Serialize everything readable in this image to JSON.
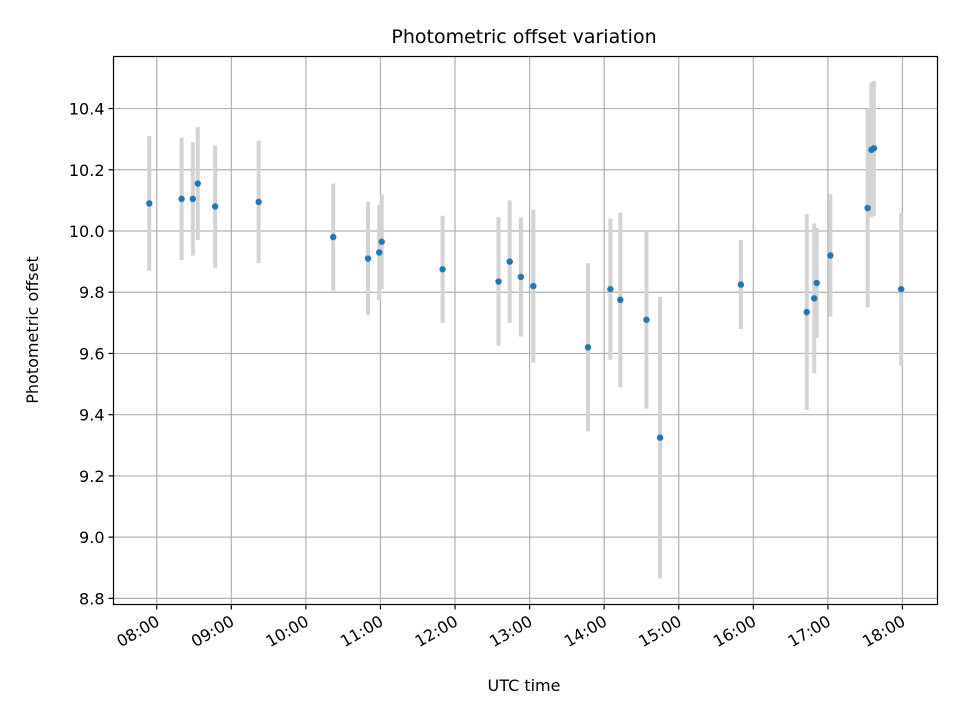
{
  "chart_data": {
    "type": "scatter",
    "title": "Photometric offset variation",
    "xlabel": "UTC time",
    "ylabel": "Photometric offset",
    "x_tick_labels": [
      "08:00",
      "09:00",
      "10:00",
      "11:00",
      "12:00",
      "13:00",
      "14:00",
      "15:00",
      "16:00",
      "17:00",
      "18:00"
    ],
    "x_ticks_hours": [
      8,
      9,
      10,
      11,
      12,
      13,
      14,
      15,
      16,
      17,
      18
    ],
    "xlim_hours": [
      7.42,
      18.47
    ],
    "y_tick_labels": [
      "8.8",
      "9.0",
      "9.2",
      "9.4",
      "9.6",
      "9.8",
      "10.0",
      "10.2",
      "10.4"
    ],
    "y_ticks": [
      8.8,
      9.0,
      9.2,
      9.4,
      9.6,
      9.8,
      10.0,
      10.2,
      10.4
    ],
    "ylim": [
      8.78,
      10.57
    ],
    "grid": true,
    "marker_color": "#1f77b4",
    "errorbar_color": "#d3d3d3",
    "series": [
      {
        "points": [
          {
            "t": "07:54",
            "y": 10.09,
            "err": 0.22
          },
          {
            "t": "08:20",
            "y": 10.105,
            "err": 0.2
          },
          {
            "t": "08:29",
            "y": 10.105,
            "err": 0.185
          },
          {
            "t": "08:33",
            "y": 10.155,
            "err": 0.185
          },
          {
            "t": "08:47",
            "y": 10.08,
            "err": 0.2
          },
          {
            "t": "09:22",
            "y": 10.095,
            "err": 0.2
          },
          {
            "t": "10:22",
            "y": 9.98,
            "err": 0.175
          },
          {
            "t": "10:50",
            "y": 9.91,
            "err": 0.185
          },
          {
            "t": "10:59",
            "y": 9.93,
            "err": 0.155
          },
          {
            "t": "11:01",
            "y": 9.965,
            "err": 0.155
          },
          {
            "t": "11:50",
            "y": 9.875,
            "err": 0.175
          },
          {
            "t": "12:35",
            "y": 9.835,
            "err": 0.21
          },
          {
            "t": "12:44",
            "y": 9.9,
            "err": 0.2
          },
          {
            "t": "12:53",
            "y": 9.85,
            "err": 0.195
          },
          {
            "t": "13:03",
            "y": 9.82,
            "err": 0.25
          },
          {
            "t": "13:47",
            "y": 9.62,
            "err": 0.275
          },
          {
            "t": "14:05",
            "y": 9.81,
            "err": 0.23
          },
          {
            "t": "14:13",
            "y": 9.775,
            "err": 0.285
          },
          {
            "t": "14:34",
            "y": 9.71,
            "err": 0.29
          },
          {
            "t": "14:45",
            "y": 9.325,
            "err": 0.46
          },
          {
            "t": "15:50",
            "y": 9.825,
            "err": 0.145
          },
          {
            "t": "16:43",
            "y": 9.735,
            "err": 0.32
          },
          {
            "t": "16:49",
            "y": 9.78,
            "err": 0.245
          },
          {
            "t": "16:51",
            "y": 9.83,
            "err": 0.18
          },
          {
            "t": "17:02",
            "y": 9.92,
            "err": 0.2
          },
          {
            "t": "17:32",
            "y": 10.075,
            "err": 0.325
          },
          {
            "t": "17:35",
            "y": 10.265,
            "err": 0.22
          },
          {
            "t": "17:37",
            "y": 10.27,
            "err": 0.22
          },
          {
            "t": "17:59",
            "y": 9.81,
            "err": 0.25
          }
        ]
      }
    ]
  }
}
